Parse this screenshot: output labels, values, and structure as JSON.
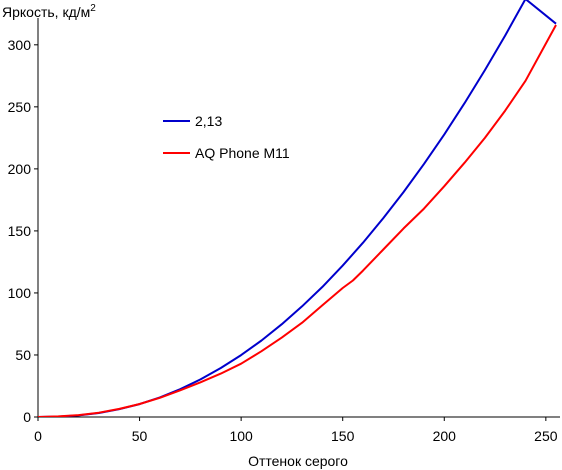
{
  "chart_data": {
    "type": "line",
    "title": "",
    "ylabel": "Яркость, кд/м",
    "ylabel_superscript": "2",
    "xlabel": "Оттенок серого",
    "xlim": [
      0,
      255
    ],
    "ylim": [
      0,
      320
    ],
    "xticks": [
      0,
      50,
      100,
      150,
      200,
      250
    ],
    "yticks": [
      0,
      50,
      100,
      150,
      200,
      250,
      300
    ],
    "grid": false,
    "legend_position": "upper-left",
    "series": [
      {
        "name": "2,13",
        "color": "#0000cc",
        "x": [
          0,
          10,
          20,
          30,
          40,
          50,
          60,
          70,
          80,
          90,
          100,
          110,
          120,
          130,
          140,
          150,
          160,
          170,
          180,
          190,
          200,
          210,
          220,
          230,
          240,
          255
        ],
        "y": [
          0,
          0.3,
          1.3,
          3.2,
          6.3,
          10.4,
          15.8,
          22.4,
          30.3,
          39.5,
          49.9,
          61.7,
          74.8,
          89.2,
          104.9,
          122.0,
          140.5,
          160.3,
          181.4,
          204.0,
          227.8,
          253.0,
          279.6,
          307.5,
          336.9,
          317
        ]
      },
      {
        "name": "AQ Phone M11",
        "color": "#ff0000",
        "x": [
          0,
          10,
          20,
          30,
          40,
          50,
          60,
          70,
          80,
          90,
          100,
          110,
          120,
          130,
          140,
          150,
          155,
          160,
          170,
          180,
          190,
          200,
          210,
          220,
          230,
          240,
          255
        ],
        "y": [
          0,
          0.5,
          1.5,
          3.5,
          6.5,
          10.5,
          15.5,
          21.5,
          28,
          35,
          43,
          53,
          64,
          76,
          90,
          104,
          110,
          118,
          135,
          152,
          168,
          186,
          205,
          225,
          247,
          271,
          316
        ]
      }
    ]
  }
}
